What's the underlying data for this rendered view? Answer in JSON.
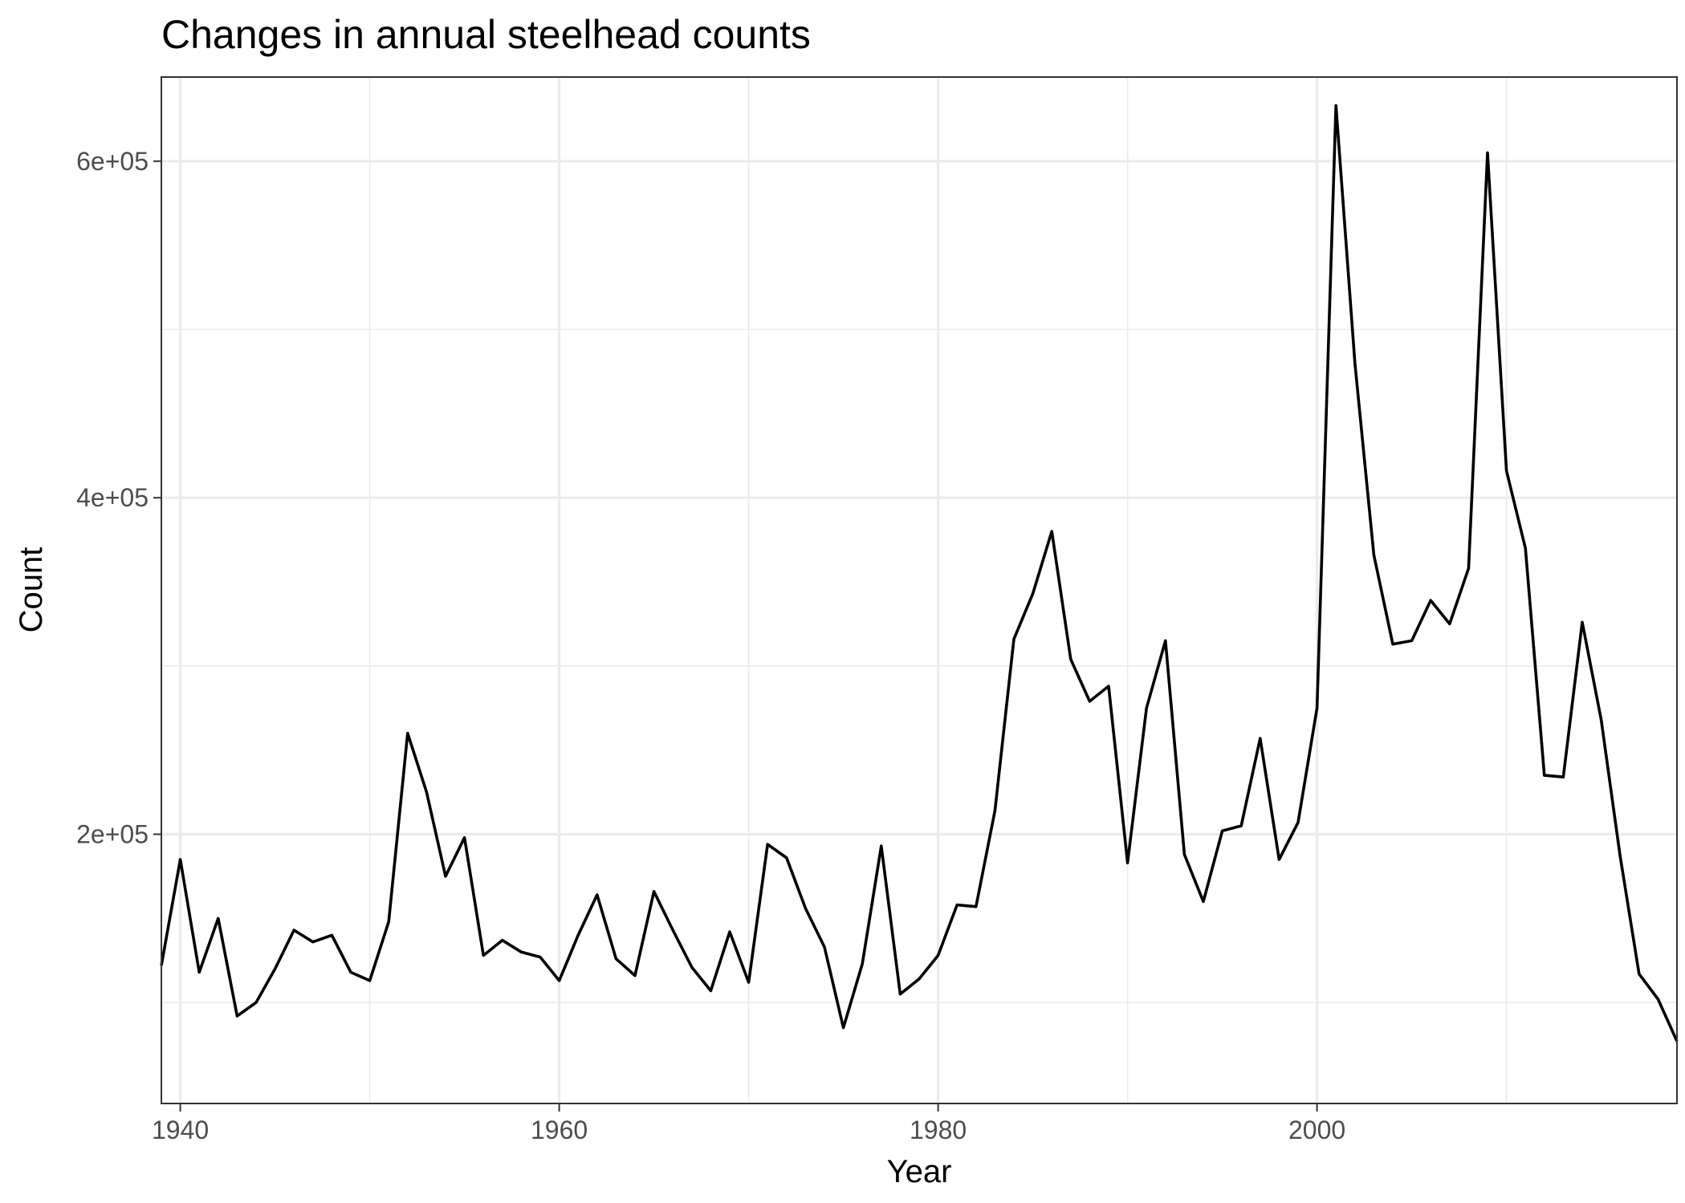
{
  "chart_data": {
    "type": "line",
    "title": "Changes in annual steelhead counts",
    "xlabel": "Year",
    "ylabel": "Count",
    "xlim": [
      1939,
      2019
    ],
    "ylim": [
      40000,
      650000
    ],
    "x_ticks": [
      1940,
      1960,
      1980,
      2000
    ],
    "x_tick_labels": [
      "1940",
      "1960",
      "1980",
      "2000"
    ],
    "x_minor_ticks": [
      1950,
      1970,
      1990,
      2010
    ],
    "y_ticks": [
      200000,
      400000,
      600000
    ],
    "y_tick_labels": [
      "2e+05",
      "4e+05",
      "6e+05"
    ],
    "y_minor_ticks": [
      100000,
      300000,
      500000
    ],
    "grid": true,
    "legend": "none",
    "colors": {
      "line": "#000000",
      "grid": "#ebebeb",
      "border": "#333333",
      "background": "#ffffff"
    },
    "series": [
      {
        "x": [
          1939,
          1940,
          1941,
          1942,
          1943,
          1944,
          1945,
          1946,
          1947,
          1948,
          1949,
          1950,
          1951,
          1952,
          1953,
          1954,
          1955,
          1956,
          1957,
          1958,
          1959,
          1960,
          1961,
          1962,
          1963,
          1964,
          1965,
          1966,
          1967,
          1968,
          1969,
          1970,
          1971,
          1972,
          1973,
          1974,
          1975,
          1976,
          1977,
          1978,
          1979,
          1980,
          1981,
          1982,
          1983,
          1984,
          1985,
          1986,
          1987,
          1988,
          1989,
          1990,
          1991,
          1992,
          1993,
          1994,
          1995,
          1996,
          1997,
          1998,
          1999,
          2000,
          2001,
          2002,
          2003,
          2004,
          2005,
          2006,
          2007,
          2008,
          2009,
          2010,
          2011,
          2012,
          2013,
          2014,
          2015,
          2016,
          2017,
          2018,
          2019
        ],
        "values": [
          122000,
          185000,
          118000,
          150000,
          92000,
          100000,
          120000,
          143000,
          136000,
          140000,
          118000,
          113000,
          148000,
          260000,
          225000,
          175000,
          198000,
          128000,
          137000,
          130000,
          127000,
          113000,
          140000,
          164000,
          126000,
          116000,
          166000,
          143000,
          121000,
          107000,
          142000,
          112000,
          194000,
          186000,
          156000,
          133000,
          85000,
          123000,
          193000,
          105000,
          114000,
          128000,
          158000,
          157000,
          214000,
          316000,
          343000,
          380000,
          304000,
          279000,
          288000,
          183000,
          275000,
          315000,
          188000,
          160000,
          202000,
          205000,
          257000,
          185000,
          207000,
          275000,
          633000,
          480000,
          366000,
          313000,
          315000,
          339000,
          325000,
          358000,
          605000,
          416000,
          370000,
          235000,
          234000,
          326000,
          268000,
          187000,
          117000,
          102000,
          77000
        ]
      }
    ]
  }
}
